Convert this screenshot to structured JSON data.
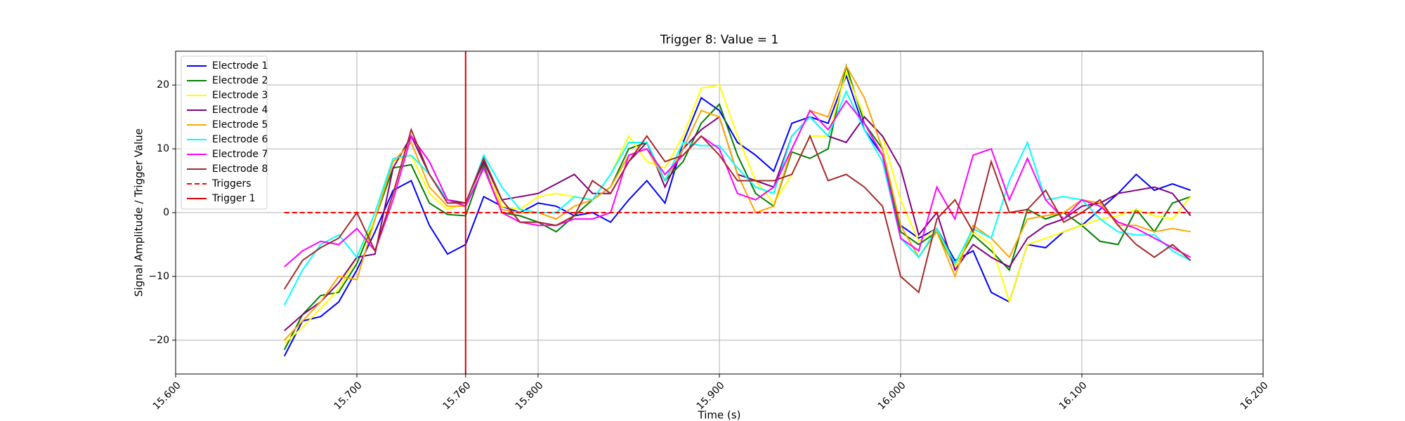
{
  "chart_data": {
    "type": "line",
    "title": "Trigger 8: Value = 1",
    "x_label": "Time (s)",
    "y_label": "Signal Amplitude / Trigger Value",
    "x": [
      15.66,
      15.67,
      15.68,
      15.69,
      15.7,
      15.71,
      15.72,
      15.73,
      15.74,
      15.75,
      15.76,
      15.77,
      15.78,
      15.79,
      15.8,
      15.81,
      15.82,
      15.83,
      15.84,
      15.85,
      15.86,
      15.87,
      15.88,
      15.89,
      15.9,
      15.91,
      15.92,
      15.93,
      15.94,
      15.95,
      15.96,
      15.97,
      15.98,
      15.99,
      16.0,
      16.01,
      16.02,
      16.03,
      16.04,
      16.05,
      16.06,
      16.07,
      16.08,
      16.09,
      16.1,
      16.11,
      16.12,
      16.13,
      16.14,
      16.15,
      16.16
    ],
    "series": [
      {
        "name": "Electrode 1",
        "color": "#0000ff",
        "values": [
          -22.5,
          -17,
          -16.3,
          -14,
          -9,
          -3,
          3.5,
          5,
          -2,
          -6.5,
          -5,
          2.5,
          1,
          0,
          1.5,
          1,
          -0.5,
          0,
          -1.5,
          2,
          5,
          1.5,
          11,
          18,
          16,
          11,
          9,
          6.5,
          14,
          15,
          14,
          21.5,
          13,
          9,
          -2,
          -4,
          -2.5,
          -7.5,
          -6,
          -12.5,
          -14,
          -5,
          -5.5,
          -3,
          -2,
          0.5,
          3,
          6,
          3.5,
          4.5,
          3.5
        ]
      },
      {
        "name": "Electrode 2",
        "color": "#008000",
        "values": [
          -21.5,
          -16,
          -13,
          -12.5,
          -8,
          -1,
          7,
          7.5,
          1.5,
          -0.3,
          -0.5,
          7.5,
          0,
          -0.5,
          -1.5,
          -3,
          -0.5,
          2,
          4,
          10,
          11,
          5,
          8,
          14,
          17,
          9,
          3,
          1,
          9.5,
          8.5,
          10,
          23,
          14,
          10,
          -3,
          -5,
          -3,
          -8.5,
          -3.5,
          -6,
          -9,
          0.5,
          -1,
          0,
          -2,
          -4.5,
          -5,
          0.5,
          -3,
          1.5,
          2.5
        ]
      },
      {
        "name": "Electrode 3",
        "color": "#ffff00",
        "values": [
          -20.5,
          -18,
          -15,
          -12,
          -7,
          -1,
          8,
          9,
          3,
          0.5,
          1.5,
          8.5,
          1,
          0.5,
          2.5,
          3,
          2.5,
          2,
          6,
          12,
          8,
          7,
          12,
          19.5,
          20,
          12,
          5,
          1.5,
          6,
          12,
          12,
          22,
          15,
          12,
          2,
          -4.5,
          -2.5,
          -8.5,
          -3,
          -5,
          -14,
          -5,
          -4,
          -3,
          -2,
          -1,
          -0.5,
          0.5,
          -0.5,
          -1,
          2.5
        ]
      },
      {
        "name": "Electrode 4",
        "color": "#800080",
        "values": [
          -18.5,
          -16,
          -14,
          -11,
          -7,
          -6.5,
          7,
          12,
          6,
          2,
          1.5,
          8,
          2,
          2.5,
          3,
          4.5,
          6,
          3,
          3,
          8,
          11,
          4,
          10,
          13,
          15,
          6,
          5,
          4,
          12,
          15,
          12,
          11,
          15,
          12,
          7,
          -3.5,
          0,
          -9,
          -5,
          -7,
          -8.5,
          -4,
          -2,
          -1,
          1,
          1.5,
          3,
          3.5,
          4,
          3,
          -0.5
        ]
      },
      {
        "name": "Electrode 5",
        "color": "#ffa500",
        "values": [
          -20,
          -17,
          -14,
          -10,
          -10.5,
          -1,
          8,
          11,
          4,
          1,
          1,
          7,
          0.5,
          0,
          0,
          -1,
          1,
          2,
          4,
          9,
          10,
          5,
          10,
          16,
          15,
          6,
          0,
          1,
          10,
          16,
          15,
          23,
          18,
          10,
          -2,
          -7,
          -3,
          -10,
          -2,
          -4,
          -7,
          -1,
          -0.5,
          0,
          2,
          1.5,
          -2,
          -2,
          -3,
          -2.5,
          -3
        ]
      },
      {
        "name": "Electrode 6",
        "color": "#00ffff",
        "values": [
          -14.5,
          -9,
          -5,
          -3.5,
          -7,
          0,
          8.5,
          9,
          6,
          2,
          1,
          9,
          4,
          0.5,
          0,
          0,
          2.5,
          2,
          6,
          11,
          11,
          5,
          11,
          10.5,
          10.5,
          7,
          4,
          3,
          12,
          15,
          12,
          19,
          13,
          8,
          -4,
          -7,
          -2.5,
          -8,
          -2.5,
          -4,
          5,
          11,
          2,
          2.5,
          2,
          -1,
          -3,
          -3.5,
          -3.5,
          -6,
          -7.5
        ]
      },
      {
        "name": "Electrode 7",
        "color": "#ff00ff",
        "values": [
          -8.5,
          -6,
          -4.5,
          -5,
          -2.5,
          -6,
          2,
          12,
          8,
          2,
          1,
          7,
          0,
          -1.5,
          -2,
          -2,
          -1,
          -1,
          0,
          9,
          10,
          6,
          9,
          12,
          10,
          3,
          2,
          4,
          10,
          16,
          13,
          17.5,
          14,
          9,
          -4,
          -6,
          4,
          -1,
          9,
          10,
          2,
          8.5,
          2,
          -1,
          2,
          1,
          -1.5,
          -2.5,
          -4,
          -5.5,
          -7
        ]
      },
      {
        "name": "Electrode 8",
        "color": "#a52a2a",
        "values": [
          -12,
          -7.5,
          -5.5,
          -4,
          0,
          -6,
          3,
          13,
          6,
          1.5,
          1.5,
          8.5,
          2,
          -1.5,
          -1.5,
          -2,
          -0.5,
          5,
          3,
          8,
          12,
          8,
          9,
          12,
          9,
          5,
          5,
          5,
          6,
          12,
          5,
          6,
          4,
          1,
          -10,
          -12.5,
          -1,
          2,
          -3,
          8,
          0,
          0.5,
          3.5,
          -1.5,
          0,
          2,
          -2,
          -5,
          -7,
          -5,
          -7.5
        ]
      }
    ],
    "triggers": {
      "name": "Triggers",
      "color": "#ff0000",
      "x": [
        15.66,
        16.16
      ],
      "values": [
        0,
        0
      ]
    },
    "trigger_line": {
      "name": "Trigger 1",
      "color": "#e00000",
      "x": 15.76
    },
    "xlim": [
      15.6,
      16.2
    ],
    "ylim": [
      -25.3,
      25.3
    ],
    "xticks": [
      {
        "value": 15.6,
        "label": "15.600"
      },
      {
        "value": 15.7,
        "label": "15.700"
      },
      {
        "value": 15.76,
        "label": "15.760"
      },
      {
        "value": 15.8,
        "label": "15.800"
      },
      {
        "value": 15.9,
        "label": "15.900"
      },
      {
        "value": 16.0,
        "label": "16.000"
      },
      {
        "value": 16.1,
        "label": "16.100"
      },
      {
        "value": 16.2,
        "label": "16.200"
      }
    ],
    "yticks": [
      {
        "value": -20,
        "label": "−20"
      },
      {
        "value": -10,
        "label": "−10"
      },
      0,
      10,
      20
    ],
    "grid": true,
    "legend": "upper left"
  }
}
